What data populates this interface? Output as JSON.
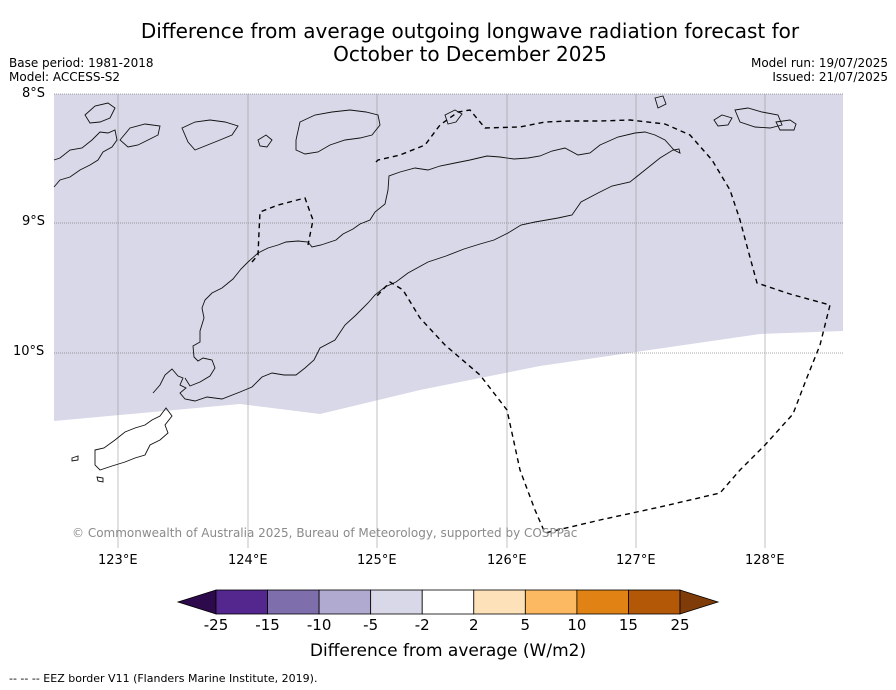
{
  "title": {
    "line1": "Difference from average outgoing longwave radiation forecast for",
    "line2": "October to December 2025"
  },
  "meta": {
    "base_period": "Base period: 1981-2018",
    "model": "Model: ACCESS-S2",
    "model_run": "Model run: 19/07/2025",
    "issued": "Issued: 21/07/2025"
  },
  "map": {
    "lat_labels": [
      "8°S",
      "9°S",
      "10°S"
    ],
    "lon_labels": [
      "123°E",
      "124°E",
      "125°E",
      "126°E",
      "127°E",
      "128°E"
    ],
    "credit": "© Commonwealth of Australia 2025, Bureau of Meteorology, supported by COSPPac",
    "shaded_category": "-5 to -2",
    "shaded_color": "#d8d8e8"
  },
  "colorbar": {
    "ticks": [
      "-25",
      "-15",
      "-10",
      "-5",
      "-2",
      "2",
      "5",
      "10",
      "15",
      "25"
    ],
    "colors": [
      "#2d0a4b",
      "#54278f",
      "#7f6eac",
      "#b0aad0",
      "#d8d8e8",
      "#ffffff",
      "#fde1b8",
      "#fdb862",
      "#e08214",
      "#b35806",
      "#7f3b08"
    ],
    "title": "Difference from average (W/m2)"
  },
  "legend_note": "--  --  -- EEZ border V11 (Flanders Marine Institute, 2019)."
}
